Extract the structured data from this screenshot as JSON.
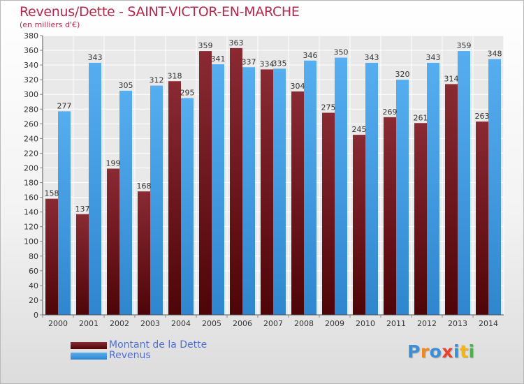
{
  "title": "Revenus/Dette - SAINT-VICTOR-EN-MARCHE",
  "subtitle": "(en milliers d'€)",
  "logo_text": "Proxiti",
  "colors": {
    "debt": "#7b1f28",
    "revenue": "#4aa5e8",
    "title": "#b8284a",
    "legend_text": "#4f6fd6"
  },
  "chart_data": {
    "type": "bar",
    "categories": [
      "2000",
      "2001",
      "2002",
      "2003",
      "2004",
      "2005",
      "2006",
      "2007",
      "2008",
      "2009",
      "2010",
      "2011",
      "2012",
      "2013",
      "2014"
    ],
    "series": [
      {
        "name": "Montant de la Dette",
        "values": [
          158,
          137,
          199,
          168,
          318,
          359,
          363,
          334,
          304,
          275,
          245,
          269,
          261,
          314,
          263
        ]
      },
      {
        "name": "Revenus",
        "values": [
          277,
          343,
          305,
          312,
          295,
          341,
          337,
          335,
          346,
          350,
          343,
          320,
          343,
          359,
          348
        ]
      }
    ],
    "ylim": [
      0,
      380
    ],
    "ystep": 20,
    "grid": true,
    "legend_position": "bottom-left"
  }
}
